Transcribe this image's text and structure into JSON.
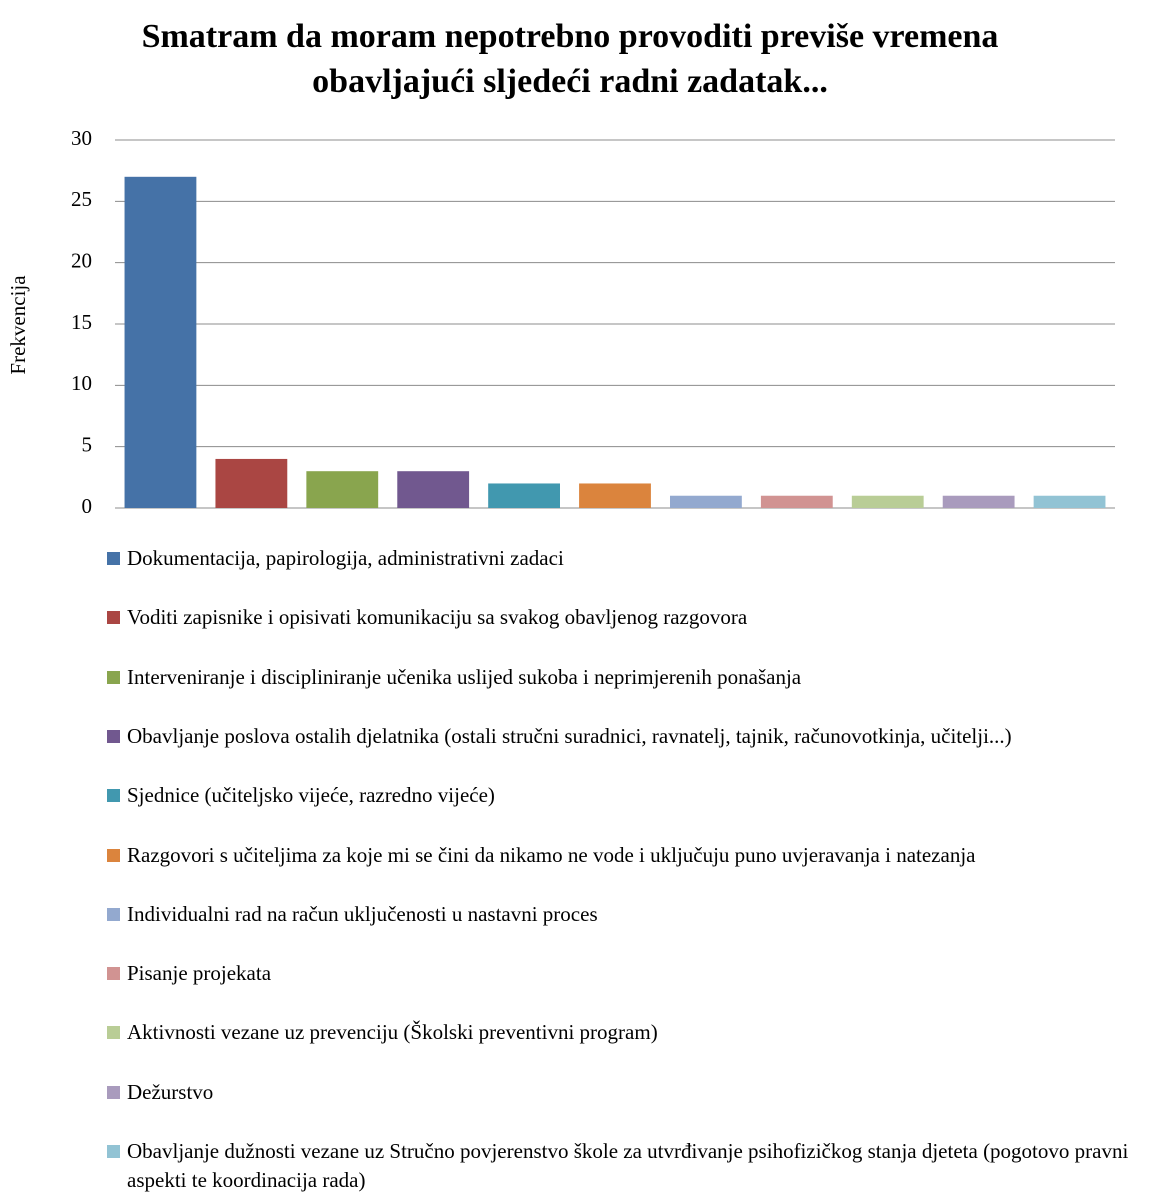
{
  "chart_data": {
    "type": "bar",
    "title": "Smatram da moram nepotrebno provoditi previše vremena obavljajući sljedeći radni zadatak...",
    "y_label": "Frekvencija",
    "ylim": [
      0,
      30
    ],
    "yticks": [
      0,
      5,
      10,
      15,
      20,
      25,
      30
    ],
    "grid": true,
    "legend": "bottom",
    "series": [
      {
        "name": "Dokumentacija, papirologija, administrativni zadaci",
        "color": "#4572a7",
        "values": [
          27
        ]
      },
      {
        "name": "Voditi zapisnike i opisivati komunikaciju sa svakog obavljenog razgovora",
        "color": "#aa4643",
        "values": [
          4
        ]
      },
      {
        "name": "Interveniranje i discipliniranje učenika  uslijed sukoba i neprimjerenih ponašanja",
        "color": "#89a54e",
        "values": [
          3
        ]
      },
      {
        "name": "Obavljanje poslova ostalih djelatnika (ostali stručni suradnici, ravnatelj, tajnik, računovotkinja, učitelji...)",
        "color": "#71588f",
        "values": [
          3
        ]
      },
      {
        "name": "Sjednice (učiteljsko vijeće, razredno vijeće)",
        "color": "#4198af",
        "values": [
          2
        ]
      },
      {
        "name": "Razgovori s učiteljima za koje mi se čini da nikamo ne vode i uključuju puno uvjeravanja i natezanja",
        "color": "#db843d",
        "values": [
          2
        ]
      },
      {
        "name": "Individualni rad na račun uključenosti u nastavni proces",
        "color": "#93a9cf",
        "values": [
          1
        ]
      },
      {
        "name": "Pisanje projekata",
        "color": "#d19392",
        "values": [
          1
        ]
      },
      {
        "name": "Aktivnosti vezane uz prevenciju (Školski preventivni program)",
        "color": "#b9cd96",
        "values": [
          1
        ]
      },
      {
        "name": "Dežurstvo",
        "color": "#a99bbd",
        "values": [
          1
        ]
      },
      {
        "name": "Obavljanje dužnosti vezane uz Stručno povjerenstvo škole za utvrđivanje psihofizičkog stanja djeteta (pogotovo pravni aspekti te koordinacija rada)",
        "color": "#92c3d4",
        "values": [
          1
        ]
      }
    ]
  }
}
